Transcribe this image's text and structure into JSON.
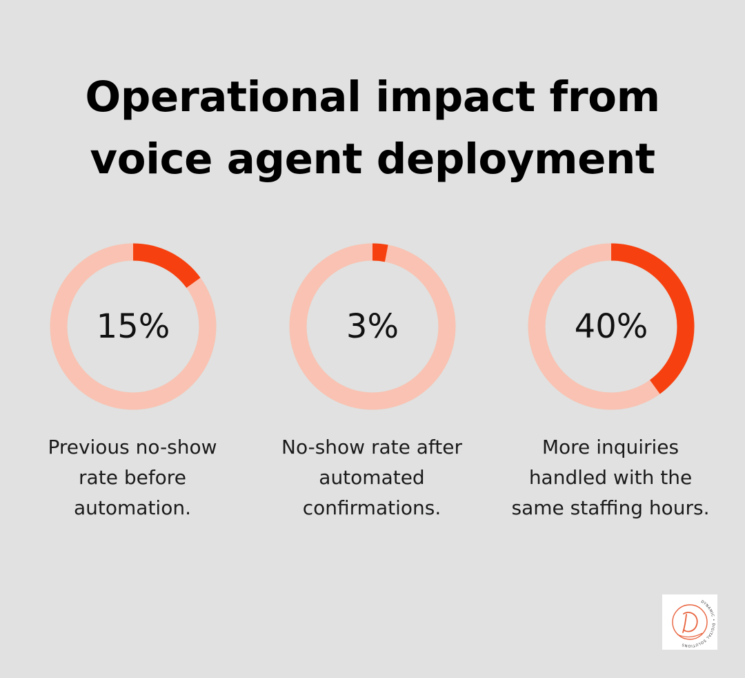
{
  "title_lines": [
    "Operational impact from",
    "voice agent deployment"
  ],
  "colors": {
    "background": "#e0e1e0",
    "ring_track": "#f9c2b2",
    "ring_fill": "#f6400f",
    "logo_accent": "#e8603a"
  },
  "chart_data": {
    "type": "donut",
    "items": [
      {
        "value": 15,
        "label": "15%",
        "caption_lines": [
          "Previous no-show",
          "rate before",
          "automation."
        ]
      },
      {
        "value": 3,
        "label": "3%",
        "caption_lines": [
          "No-show rate after",
          "automated",
          "confirmations."
        ]
      },
      {
        "value": 40,
        "label": "40%",
        "caption_lines": [
          "More inquiries",
          "handled with the",
          "same staffing hours."
        ]
      }
    ]
  },
  "logo": {
    "icon": "dynamic-digital-solutions-logo",
    "ring_text": "DYNAMIC • DIGITAL SOLUTIONS"
  }
}
